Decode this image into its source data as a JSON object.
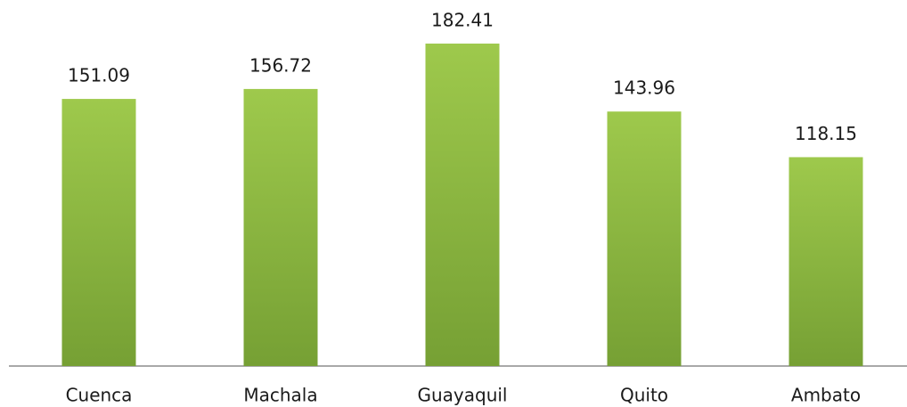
{
  "chart_data": {
    "type": "bar",
    "categories": [
      "Cuenca",
      "Machala",
      "Guayaquil",
      "Quito",
      "Ambato"
    ],
    "values": [
      151.09,
      156.72,
      182.41,
      143.96,
      118.15
    ],
    "color": "#8ab843"
  }
}
